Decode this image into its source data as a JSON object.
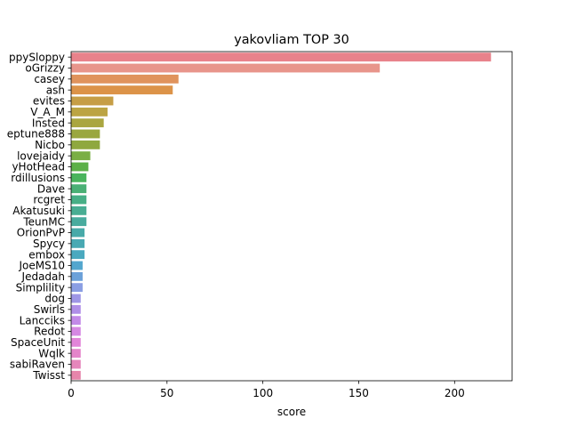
{
  "chart_data": {
    "type": "bar",
    "orientation": "horizontal",
    "title": "yakovliam TOP 30",
    "xlabel": "score",
    "ylabel": "",
    "xlim": [
      0,
      230
    ],
    "xticks": [
      "0",
      "50",
      "100",
      "150",
      "200"
    ],
    "categories": [
      "ppySloppy",
      "oGrizzy",
      "casey",
      "ash",
      "evites",
      "V_A_M",
      "Insted",
      "eptune888",
      "Nicbo",
      "lovejaidy",
      "yHotHead",
      "rdillusions",
      "Dave",
      "rcgret",
      "Akatusuki",
      "TeunMC",
      "OrionPvP",
      "Spycy",
      "embox",
      "JoeMS10",
      "Jedadah",
      "Simplility",
      "dog",
      "Swirls",
      "Lancciks",
      "Redot",
      "SpaceUnit",
      "Wqlk",
      "sabiRaven",
      "Twisst"
    ],
    "values": [
      219,
      161,
      56,
      53,
      22,
      19,
      17,
      15,
      15,
      10,
      9,
      8,
      8,
      8,
      8,
      8,
      7,
      7,
      7,
      6,
      6,
      6,
      5,
      5,
      5,
      5,
      5,
      5,
      5,
      5
    ],
    "colors": [
      "#e8828b",
      "#e8958b",
      "#e0935c",
      "#dc9348",
      "#c69e46",
      "#bca443",
      "#aaa640",
      "#9aa73f",
      "#8fa83f",
      "#7aaf45",
      "#5cb048",
      "#4ab45d",
      "#4ab075",
      "#47af86",
      "#48ad93",
      "#48ab9e",
      "#48aaa9",
      "#49a9b3",
      "#4aa9bf",
      "#53a6ce",
      "#6ba1d9",
      "#8a9ee3",
      "#9e96e6",
      "#b08fe8",
      "#c38ae8",
      "#d688e3",
      "#e285d9",
      "#e485ca",
      "#e586bb",
      "#e685ab"
    ],
    "grid": false,
    "legend": "none"
  }
}
